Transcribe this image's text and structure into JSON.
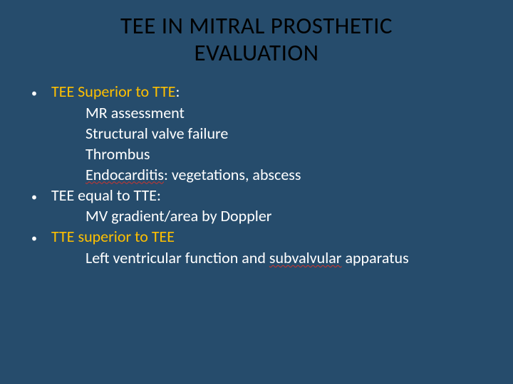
{
  "slide": {
    "background_color": "#264c6c",
    "title": {
      "line1": "TEE IN MITRAL PROSTHETIC",
      "line2": "EVALUATION",
      "color": "#000000",
      "fontsize": 33
    },
    "body_fontsize": 22,
    "bullets": [
      {
        "marker": "•",
        "segments": [
          {
            "text": "TEE Superior to TTE",
            "color_class": "yellow"
          },
          {
            "text": ":",
            "color_class": "white"
          }
        ],
        "subs": [
          {
            "segments": [
              {
                "text": "MR assessment",
                "color_class": "white"
              }
            ]
          },
          {
            "segments": [
              {
                "text": "Structural valve failure",
                "color_class": "white"
              }
            ]
          },
          {
            "segments": [
              {
                "text": "Thrombus",
                "color_class": "white"
              }
            ]
          },
          {
            "segments": [
              {
                "text": "Endocarditis",
                "color_class": "white",
                "spell": true
              },
              {
                "text": ": vegetations, abscess",
                "color_class": "white"
              }
            ]
          }
        ]
      },
      {
        "marker": "•",
        "segments": [
          {
            "text": " TEE equal to TTE:",
            "color_class": "white"
          }
        ],
        "subs": [
          {
            "segments": [
              {
                "text": "MV gradient/area by Doppler",
                "color_class": "white"
              }
            ]
          }
        ]
      },
      {
        "marker": "•",
        "segments": [
          {
            "text": "  ",
            "color_class": "white"
          },
          {
            "text": "TTE superior to TEE",
            "color_class": "yellow"
          }
        ],
        "subs": [
          {
            "segments": [
              {
                "text": "Left ventricular function and ",
                "color_class": "white"
              },
              {
                "text": "subvalvular",
                "color_class": "white",
                "spell": true
              },
              {
                "text": " apparatus",
                "color_class": "white"
              }
            ]
          }
        ]
      }
    ]
  }
}
